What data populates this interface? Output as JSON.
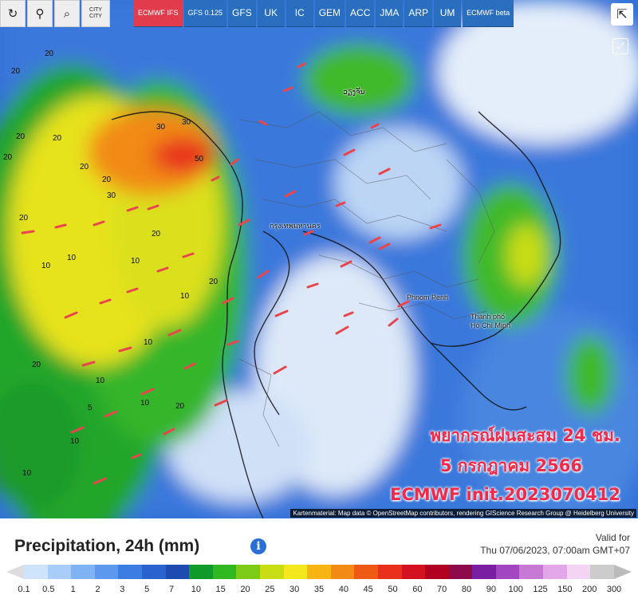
{
  "toolbar": {
    "buttons": [
      {
        "name": "refresh",
        "icon": "refresh-icon",
        "glyph": "↻"
      },
      {
        "name": "location",
        "icon": "location-pin-icon",
        "glyph": "⚲"
      },
      {
        "name": "zoom",
        "icon": "zoom-icon",
        "glyph": "⌕"
      }
    ],
    "city_label": "CITY\nCITY"
  },
  "models": [
    {
      "label": "ECMWF IFS",
      "active": true
    },
    {
      "label": "GFS 0.125",
      "active": false
    },
    {
      "label": "GFS",
      "active": false
    },
    {
      "label": "UK",
      "active": false
    },
    {
      "label": "IC",
      "active": false
    },
    {
      "label": "GEM",
      "active": false
    },
    {
      "label": "ACC",
      "active": false
    },
    {
      "label": "JMA",
      "active": false
    },
    {
      "label": "ARP",
      "active": false
    },
    {
      "label": "UM",
      "active": false
    },
    {
      "label": "ECMWF beta",
      "active": false
    }
  ],
  "overlay": {
    "line1": "พยากรณ์ฝนสะสม 24 ชม.",
    "line2": "5 กรกฎาคม 2566",
    "line3": "ECMWF init.2023070412"
  },
  "cities": {
    "bangkok": "กรุงเทพมหานคร",
    "vientiane": "ວຽງຈັນ",
    "phnom_penh": "Phnom Penh",
    "hcmc_1": "Thành phố",
    "hcmc_2": "Hồ Chí Minh"
  },
  "map_values": [
    "20",
    "20",
    "20",
    "20",
    "20",
    "20",
    "30",
    "30",
    "50",
    "20",
    "20",
    "10",
    "10",
    "10",
    "20",
    "20",
    "30",
    "10",
    "10",
    "10",
    "20",
    "10",
    "5",
    "10",
    "20",
    "10"
  ],
  "attribution": "Kartenmaterial: Map data © OpenStreetMap contributors, rendering GIScience Research Group @ Heidelberg University",
  "legend": {
    "title": "Precipitation, 24h (mm)",
    "valid_label": "Valid for",
    "valid_time": "Thu 07/06/2023, 07:00am GMT+07",
    "ticks": [
      "0.1",
      "0.5",
      "1",
      "2",
      "3",
      "5",
      "7",
      "10",
      "15",
      "20",
      "25",
      "30",
      "35",
      "40",
      "45",
      "50",
      "60",
      "70",
      "80",
      "90",
      "100",
      "125",
      "150",
      "200",
      "300"
    ],
    "colors": [
      "#cfe3fb",
      "#a8cdf8",
      "#7fb3f3",
      "#5b98ee",
      "#3c7de3",
      "#2a62cf",
      "#1e4bb0",
      "#0f9a2a",
      "#2fb81f",
      "#7ccc17",
      "#c8dd14",
      "#f3e81c",
      "#f7b413",
      "#f28a14",
      "#ee5a14",
      "#e8301a",
      "#d4111f",
      "#b10020",
      "#8e0a4b",
      "#7b1fa2",
      "#a347c0",
      "#c67ad6",
      "#e2a7e8",
      "#f3d5f3",
      "#cccccc"
    ]
  }
}
